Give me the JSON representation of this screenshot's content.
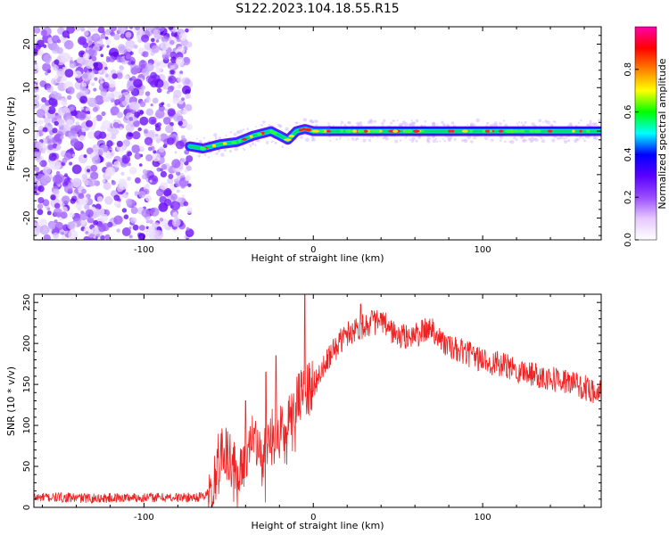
{
  "title": "S122.2023.104.18.55.R15",
  "chart_data": [
    {
      "type": "heatmap",
      "xlabel": "Height of straight line (km)",
      "ylabel": "Frequency (Hz)",
      "xlim": [
        -165,
        170
      ],
      "ylim": [
        -25,
        24
      ],
      "x_ticks": [
        -100,
        0,
        100
      ],
      "y_ticks": [
        -20,
        -10,
        0,
        10,
        20
      ],
      "colorbar": {
        "label": "Normalized spectral amplitude",
        "range": [
          0,
          1
        ],
        "ticks": [
          0.0,
          0.2,
          0.4,
          0.6,
          0.8
        ],
        "colors": [
          "#ffffff",
          "#e6c8ff",
          "#9a4dff",
          "#5a00ff",
          "#0000ff",
          "#00ffff",
          "#00ff00",
          "#ffff00",
          "#ff8000",
          "#ff0000",
          "#ff00aa"
        ]
      },
      "noise_region_x": [
        -165,
        -73
      ],
      "signal_trace": {
        "x": [
          -73,
          -65,
          -55,
          -45,
          -35,
          -25,
          -20,
          -15,
          -10,
          -5,
          0,
          25,
          50,
          100,
          150,
          170
        ],
        "frequency": [
          -3.5,
          -4,
          -3,
          -2.5,
          -1,
          0,
          -1,
          -2,
          0,
          0.5,
          0,
          0,
          0,
          0,
          0,
          0
        ]
      },
      "grid": false
    },
    {
      "type": "line",
      "xlabel": "Height of straight line (km)",
      "ylabel": "SNR (10 * v/v)",
      "xlim": [
        -165,
        170
      ],
      "ylim": [
        0,
        260
      ],
      "x_ticks": [
        -100,
        0,
        100
      ],
      "y_ticks": [
        0,
        50,
        100,
        150,
        200,
        250
      ],
      "color": "#ee2222",
      "series": [
        {
          "x": [
            -165,
            -150,
            -130,
            -110,
            -90,
            -75,
            -65,
            -60,
            -55,
            -50,
            -45,
            -40,
            -35,
            -30,
            -25,
            -20,
            -15,
            -10,
            -5,
            0,
            5,
            10,
            15,
            20,
            25,
            30,
            35,
            40,
            45,
            50,
            55,
            60,
            65,
            70,
            75,
            80,
            90,
            100,
            110,
            120,
            130,
            140,
            150,
            160,
            170
          ],
          "values": [
            12,
            12,
            11,
            12,
            12,
            12,
            13,
            22,
            70,
            60,
            40,
            70,
            80,
            55,
            85,
            95,
            110,
            130,
            140,
            150,
            165,
            185,
            200,
            212,
            218,
            222,
            226,
            226,
            218,
            208,
            208,
            210,
            214,
            220,
            205,
            195,
            188,
            180,
            174,
            168,
            163,
            158,
            153,
            146,
            140
          ]
        }
      ],
      "spikes": [
        {
          "x": -40,
          "y": 130
        },
        {
          "x": -28,
          "y": 165
        },
        {
          "x": -22,
          "y": 185
        },
        {
          "x": -5,
          "y": 260
        },
        {
          "x": 28,
          "y": 248
        }
      ],
      "grid": false
    }
  ]
}
